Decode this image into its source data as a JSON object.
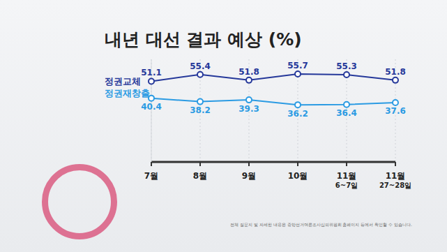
{
  "chart_data": {
    "type": "line",
    "title": "내년 대선 결과 예상 (%)",
    "categories": [
      "7월",
      "8월",
      "9월",
      "10월",
      "11월 6~7일",
      "11월 27~28일"
    ],
    "series": [
      {
        "name": "정권교체",
        "color": "#25389a",
        "values": [
          51.1,
          55.4,
          51.8,
          55.7,
          55.3,
          51.8
        ]
      },
      {
        "name": "정권재창출",
        "color": "#2b9be3",
        "values": [
          40.4,
          38.2,
          39.3,
          36.2,
          36.4,
          37.6
        ]
      }
    ],
    "ylim": [
      0,
      65
    ],
    "tick_labels": "x",
    "data_labels": true,
    "grid": true,
    "marker": "circle",
    "annotations": [
      "전체 질문지 및 자세한 내용은 중앙선거여론조사심의위원회 홈페이지 등에서 확인할 수 있습니다."
    ]
  }
}
